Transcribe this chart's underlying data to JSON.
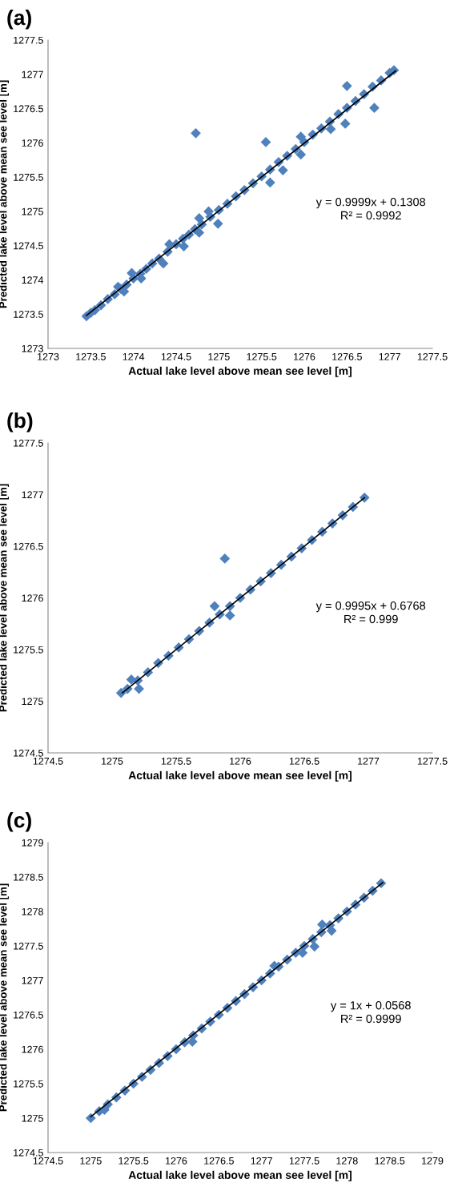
{
  "chart_data": [
    {
      "type": "scatter",
      "title": "(a)",
      "xlabel": "Actual lake level above mean see level [m]",
      "ylabel": "Predicted lake level above mean see level [m]",
      "xlim": [
        1273,
        1277.5
      ],
      "ylim": [
        1273,
        1277.5
      ],
      "xticks": [
        1273,
        1273.5,
        1274,
        1274.5,
        1275,
        1275.5,
        1276,
        1276.5,
        1277,
        1277.5
      ],
      "yticks": [
        1273,
        1273.5,
        1274,
        1274.5,
        1275,
        1275.5,
        1276,
        1276.5,
        1277,
        1277.5
      ],
      "grid": false,
      "legend": false,
      "annotations": [
        "y = 0.9999x + 0.1308\nR² = 0.9992"
      ],
      "series": [
        {
          "marker": "diamond",
          "color": "#4f81bd",
          "x": [
            1273.45,
            1273.5,
            1273.55,
            1273.62,
            1273.7,
            1273.78,
            1273.85,
            1273.92,
            1274.0,
            1274.08,
            1274.15,
            1274.22,
            1274.3,
            1274.4,
            1274.5,
            1274.58,
            1274.65,
            1274.72,
            1274.8,
            1274.9,
            1275.0,
            1275.1,
            1275.2,
            1275.3,
            1275.4,
            1275.5,
            1275.6,
            1275.7,
            1275.8,
            1275.9,
            1276.0,
            1276.1,
            1276.2,
            1276.3,
            1276.4,
            1276.5,
            1276.6,
            1276.7,
            1276.8,
            1276.9,
            1277.0,
            1277.05,
            1274.73,
            1275.55,
            1276.5,
            1276.82,
            1276.48,
            1275.6,
            1275.75,
            1275.96,
            1275.96,
            1274.99,
            1274.88,
            1274.77,
            1274.77,
            1274.35,
            1274.42,
            1274.59,
            1274.09,
            1273.98,
            1273.82,
            1273.89,
            1276.31
          ],
          "values": [
            1273.47,
            1273.52,
            1273.56,
            1273.63,
            1273.72,
            1273.79,
            1273.87,
            1273.93,
            1274.02,
            1274.09,
            1274.16,
            1274.24,
            1274.31,
            1274.41,
            1274.52,
            1274.6,
            1274.66,
            1274.74,
            1274.81,
            1274.92,
            1275.02,
            1275.11,
            1275.22,
            1275.31,
            1275.41,
            1275.51,
            1275.61,
            1275.72,
            1275.81,
            1275.91,
            1276.01,
            1276.12,
            1276.21,
            1276.31,
            1276.42,
            1276.51,
            1276.61,
            1276.71,
            1276.82,
            1276.91,
            1277.02,
            1277.06,
            1276.14,
            1276.01,
            1276.83,
            1276.51,
            1276.28,
            1275.42,
            1275.6,
            1275.83,
            1276.09,
            1274.82,
            1275.0,
            1274.9,
            1274.69,
            1274.24,
            1274.52,
            1274.49,
            1274.02,
            1274.1,
            1273.9,
            1273.83,
            1276.2
          ]
        },
        {
          "type": "line",
          "color": "#000000",
          "x": [
            1273.45,
            1277.07
          ],
          "values": [
            1273.48,
            1277.05
          ]
        }
      ]
    },
    {
      "type": "scatter",
      "title": "(b)",
      "xlabel": "Actual lake level above mean see level [m]",
      "ylabel": "Predicted lake level above mean see level [m]",
      "xlim": [
        1274.5,
        1277.5
      ],
      "ylim": [
        1274.5,
        1277.5
      ],
      "xticks": [
        1274.5,
        1275,
        1275.5,
        1276,
        1276.5,
        1277,
        1277.5
      ],
      "yticks": [
        1274.5,
        1275,
        1275.5,
        1276,
        1276.5,
        1277,
        1277.5
      ],
      "grid": false,
      "legend": false,
      "annotations": [
        "y = 0.9995x + 0.6768\nR² = 0.999"
      ],
      "series": [
        {
          "marker": "diamond",
          "color": "#4f81bd",
          "x": [
            1275.07,
            1275.12,
            1275.2,
            1275.28,
            1275.36,
            1275.44,
            1275.52,
            1275.6,
            1275.68,
            1275.76,
            1275.84,
            1275.92,
            1276.0,
            1276.08,
            1276.16,
            1276.24,
            1276.32,
            1276.4,
            1276.48,
            1276.56,
            1276.64,
            1276.72,
            1276.8,
            1276.88,
            1276.97,
            1275.88,
            1275.8,
            1275.92,
            1275.21,
            1275.15
          ],
          "values": [
            1275.08,
            1275.12,
            1275.2,
            1275.28,
            1275.37,
            1275.44,
            1275.52,
            1275.6,
            1275.68,
            1275.76,
            1275.84,
            1275.92,
            1276.0,
            1276.08,
            1276.16,
            1276.24,
            1276.32,
            1276.4,
            1276.48,
            1276.56,
            1276.64,
            1276.72,
            1276.8,
            1276.88,
            1276.97,
            1276.38,
            1275.92,
            1275.83,
            1275.12,
            1275.21
          ]
        },
        {
          "type": "line",
          "color": "#000000",
          "x": [
            1275.08,
            1276.97
          ],
          "values": [
            1275.08,
            1276.97
          ]
        }
      ]
    },
    {
      "type": "scatter",
      "title": "(c)",
      "xlabel": "Actual lake level above mean see level [m]",
      "ylabel": "Predicted lake level above mean see level [m]",
      "xlim": [
        1274.5,
        1279
      ],
      "ylim": [
        1274.5,
        1279
      ],
      "xticks": [
        1274.5,
        1275,
        1275.5,
        1276,
        1276.5,
        1277,
        1277.5,
        1278,
        1278.5,
        1279
      ],
      "yticks": [
        1274.5,
        1275,
        1275.5,
        1276,
        1276.5,
        1277,
        1277.5,
        1278,
        1278.5,
        1279
      ],
      "grid": false,
      "legend": false,
      "annotations": [
        "y = 1x + 0.0568\nR² = 0.9999"
      ],
      "series": [
        {
          "marker": "diamond",
          "color": "#4f81bd",
          "x": [
            1275.0,
            1275.1,
            1275.2,
            1275.3,
            1275.4,
            1275.5,
            1275.6,
            1275.7,
            1275.8,
            1275.9,
            1276.0,
            1276.1,
            1276.2,
            1276.3,
            1276.4,
            1276.5,
            1276.6,
            1276.7,
            1276.8,
            1276.9,
            1277.0,
            1277.1,
            1277.2,
            1277.3,
            1277.4,
            1277.5,
            1277.6,
            1277.7,
            1277.8,
            1277.9,
            1278.0,
            1278.1,
            1278.2,
            1278.3,
            1278.4,
            1277.71,
            1277.82,
            1277.62,
            1277.48,
            1277.15,
            1276.19,
            1275.16
          ],
          "values": [
            1275.0,
            1275.1,
            1275.2,
            1275.3,
            1275.4,
            1275.5,
            1275.6,
            1275.7,
            1275.8,
            1275.9,
            1276.0,
            1276.1,
            1276.2,
            1276.3,
            1276.4,
            1276.5,
            1276.6,
            1276.7,
            1276.8,
            1276.9,
            1277.0,
            1277.1,
            1277.2,
            1277.3,
            1277.4,
            1277.5,
            1277.6,
            1277.7,
            1277.8,
            1277.9,
            1278.0,
            1278.1,
            1278.2,
            1278.3,
            1278.41,
            1277.81,
            1277.72,
            1277.49,
            1277.4,
            1277.21,
            1276.11,
            1275.12
          ]
        },
        {
          "type": "line",
          "color": "#000000",
          "x": [
            1275.0,
            1278.42
          ],
          "values": [
            1275.02,
            1278.42
          ]
        }
      ]
    }
  ]
}
